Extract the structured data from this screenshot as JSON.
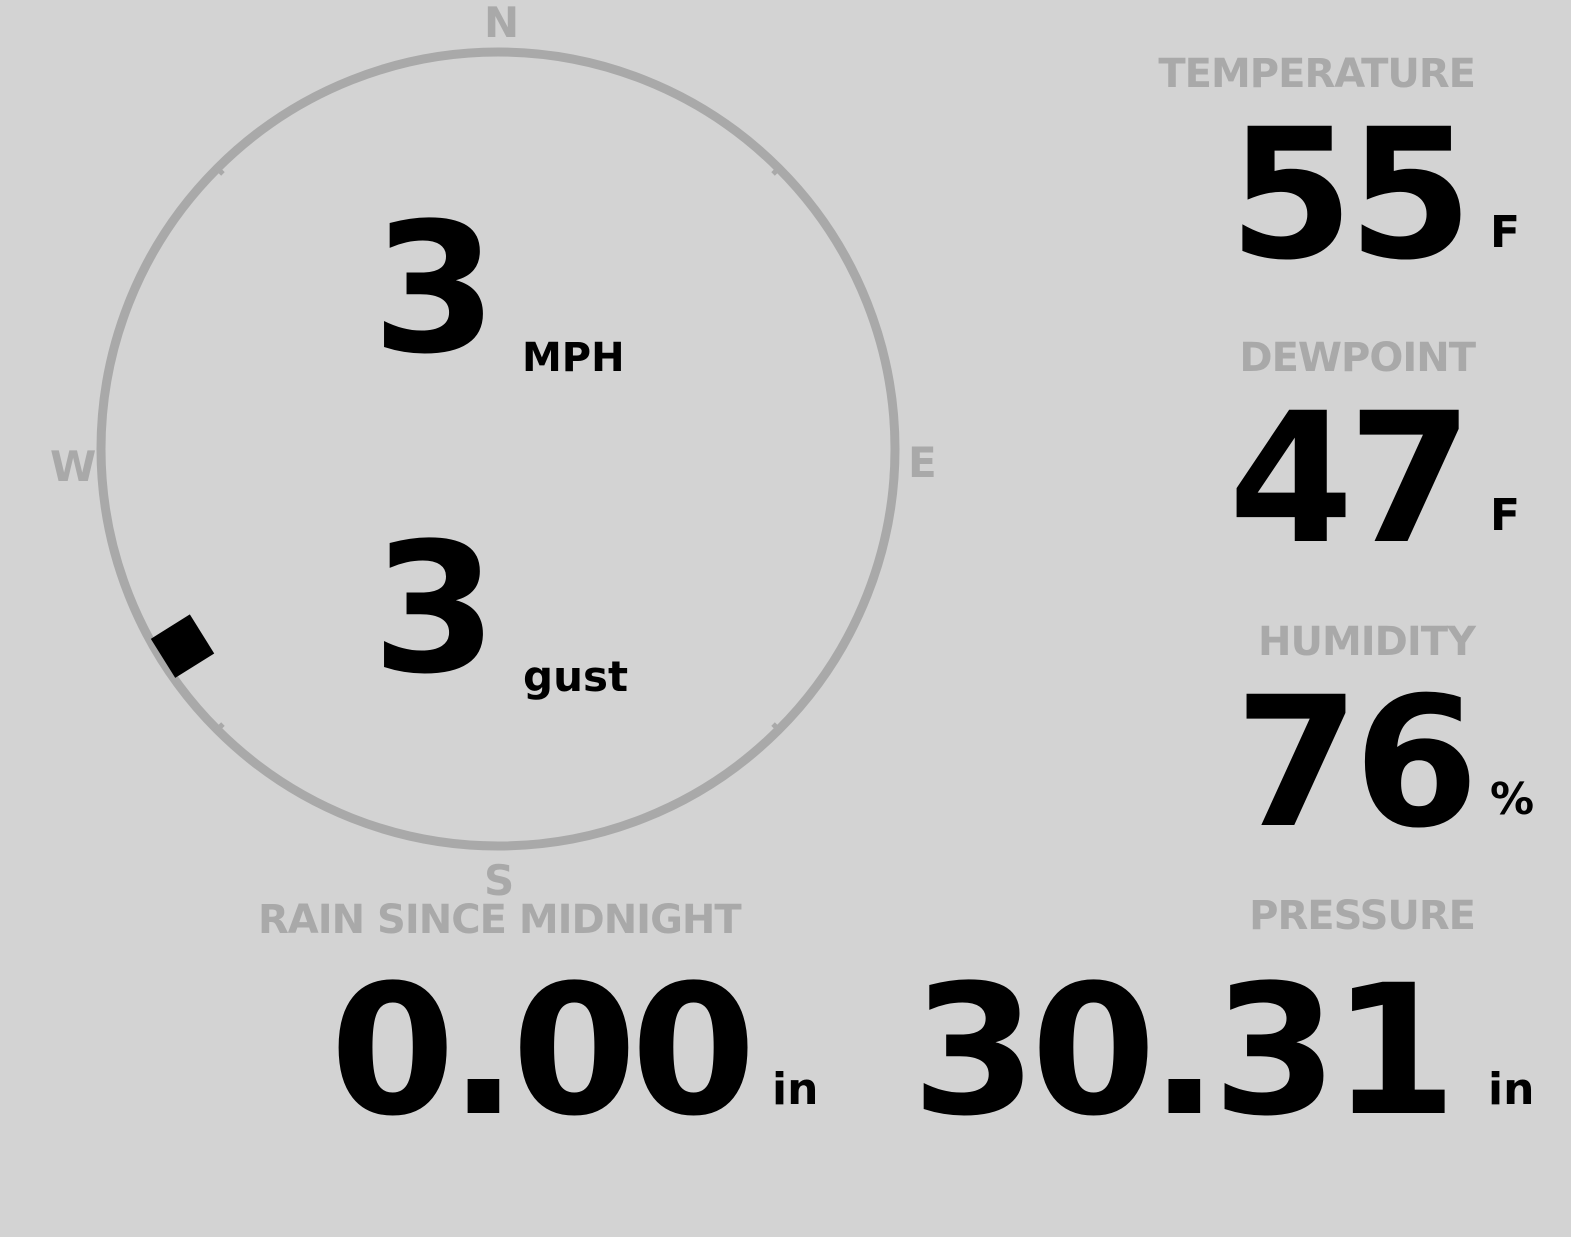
{
  "compass": {
    "north": "N",
    "east": "E",
    "south": "S",
    "west": "W",
    "wind_direction_deg": 238,
    "ring_color": "#a9a9a9",
    "marker_color": "#000000"
  },
  "wind": {
    "speed": "3",
    "speed_unit": "MPH",
    "gust": "3",
    "gust_unit": "gust"
  },
  "temperature": {
    "label": "TEMPERATURE",
    "value": "55",
    "unit": "F"
  },
  "dewpoint": {
    "label": "DEWPOINT",
    "value": "47",
    "unit": "F"
  },
  "humidity": {
    "label": "HUMIDITY",
    "value": "76",
    "unit": "%"
  },
  "rain": {
    "label": "RAIN SINCE MIDNIGHT",
    "value": "0.00",
    "unit": "in"
  },
  "pressure": {
    "label": "PRESSURE",
    "value": "30.31",
    "unit": "in"
  },
  "colors": {
    "background": "#d3d3d3",
    "label": "#a9a9a9",
    "value": "#000000"
  }
}
